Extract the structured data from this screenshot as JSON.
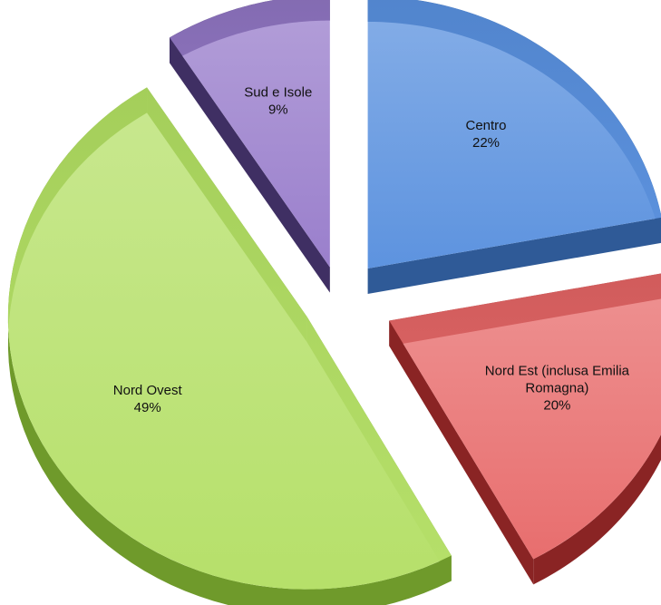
{
  "chart_data": {
    "type": "pie",
    "title": "",
    "legend": "none",
    "slices": [
      {
        "label": "Centro",
        "label_lines": [
          "Centro"
        ],
        "value": 22,
        "pct_label": "22%",
        "color": "#5d93df",
        "side_color": "#2f5a97"
      },
      {
        "label": "Nord Est (inclusa Emilia Romagna)",
        "label_lines": [
          "Nord Est (inclusa Emilia",
          "Romagna)"
        ],
        "value": 20,
        "pct_label": "20%",
        "color": "#e86e6e",
        "side_color": "#8a2424"
      },
      {
        "label": "Nord Ovest",
        "label_lines": [
          "Nord Ovest"
        ],
        "value": 49,
        "pct_label": "49%",
        "color": "#b6e06a",
        "side_color": "#6f9a2b"
      },
      {
        "label": "Sud e Isole",
        "label_lines": [
          "Sud e Isole"
        ],
        "value": 9,
        "pct_label": "9%",
        "color": "#9a7fcc",
        "side_color": "#3f2f63"
      }
    ]
  }
}
